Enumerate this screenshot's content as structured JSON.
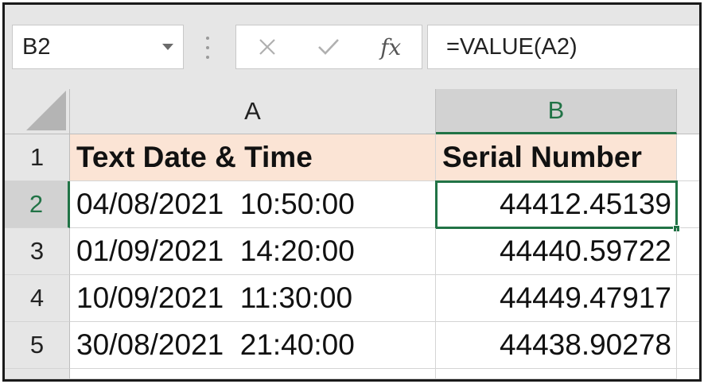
{
  "formula_bar": {
    "name_box": "B2",
    "cancel_symbol": "✕",
    "enter_symbol": "✓",
    "fx_label": "fx",
    "formula": "=VALUE(A2)"
  },
  "columns": [
    "A",
    "B"
  ],
  "rows": [
    {
      "row": "1",
      "a": "Text Date & Time",
      "b": "Serial Number"
    },
    {
      "row": "2",
      "a": "04/08/2021  10:50:00",
      "b": "44412.45139"
    },
    {
      "row": "3",
      "a": "01/09/2021  14:20:00",
      "b": "44440.59722"
    },
    {
      "row": "4",
      "a": "10/09/2021  11:30:00",
      "b": "44449.47917"
    },
    {
      "row": "5",
      "a": "30/08/2021  21:40:00",
      "b": "44438.90278"
    }
  ],
  "selected_cell": "B2",
  "colors": {
    "accent": "#217346",
    "header_fill": "#fbe4d5"
  }
}
